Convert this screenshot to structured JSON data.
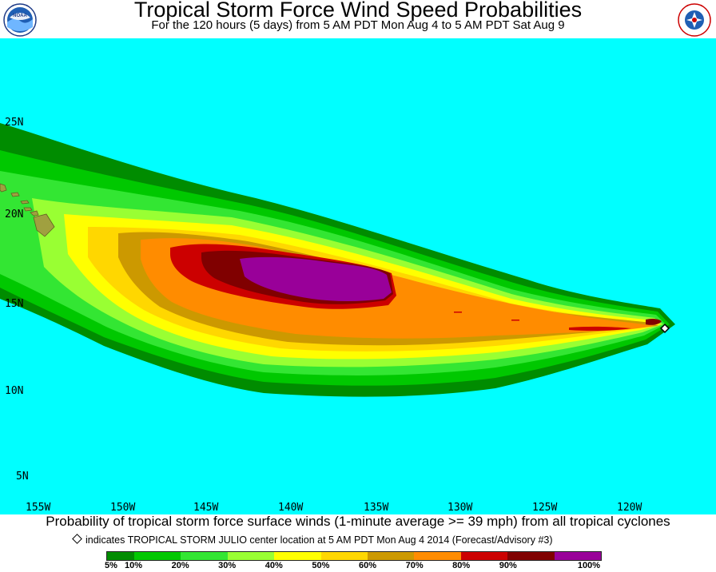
{
  "header": {
    "title": "Tropical Storm Force Wind Speed Probabilities",
    "subtitle": "For the 120 hours (5 days) from 5 AM PDT Mon Aug 4 to 5 AM PDT Sat Aug 9",
    "logo_left": "NOAA",
    "logo_right": "NATIONAL WEATHER SERVICE"
  },
  "map": {
    "background_color": "#00ffff",
    "land_color": "#a0a040",
    "lat_labels": [
      "25N",
      "20N",
      "15N",
      "10N",
      "5N"
    ],
    "lon_labels": [
      "155W",
      "150W",
      "145W",
      "140W",
      "135W",
      "130W",
      "125W",
      "120W"
    ],
    "storm_marker": "storm-center-diamond"
  },
  "footer": {
    "caption": "Probability of tropical storm force surface winds (1-minute average >= 39 mph) from all tropical cyclones",
    "note": "indicates TROPICAL STORM JULIO center location at 5 AM PDT Mon Aug 4 2014 (Forecast/Advisory #3)"
  },
  "legend": {
    "labels": [
      "5%",
      "10%",
      "20%",
      "30%",
      "40%",
      "50%",
      "60%",
      "70%",
      "80%",
      "90%",
      "100%"
    ],
    "colors": [
      "#008c00",
      "#00c800",
      "#33e633",
      "#99ff33",
      "#ffff00",
      "#ffd700",
      "#cc9900",
      "#ff8c00",
      "#cc0000",
      "#800000",
      "#990099"
    ]
  }
}
